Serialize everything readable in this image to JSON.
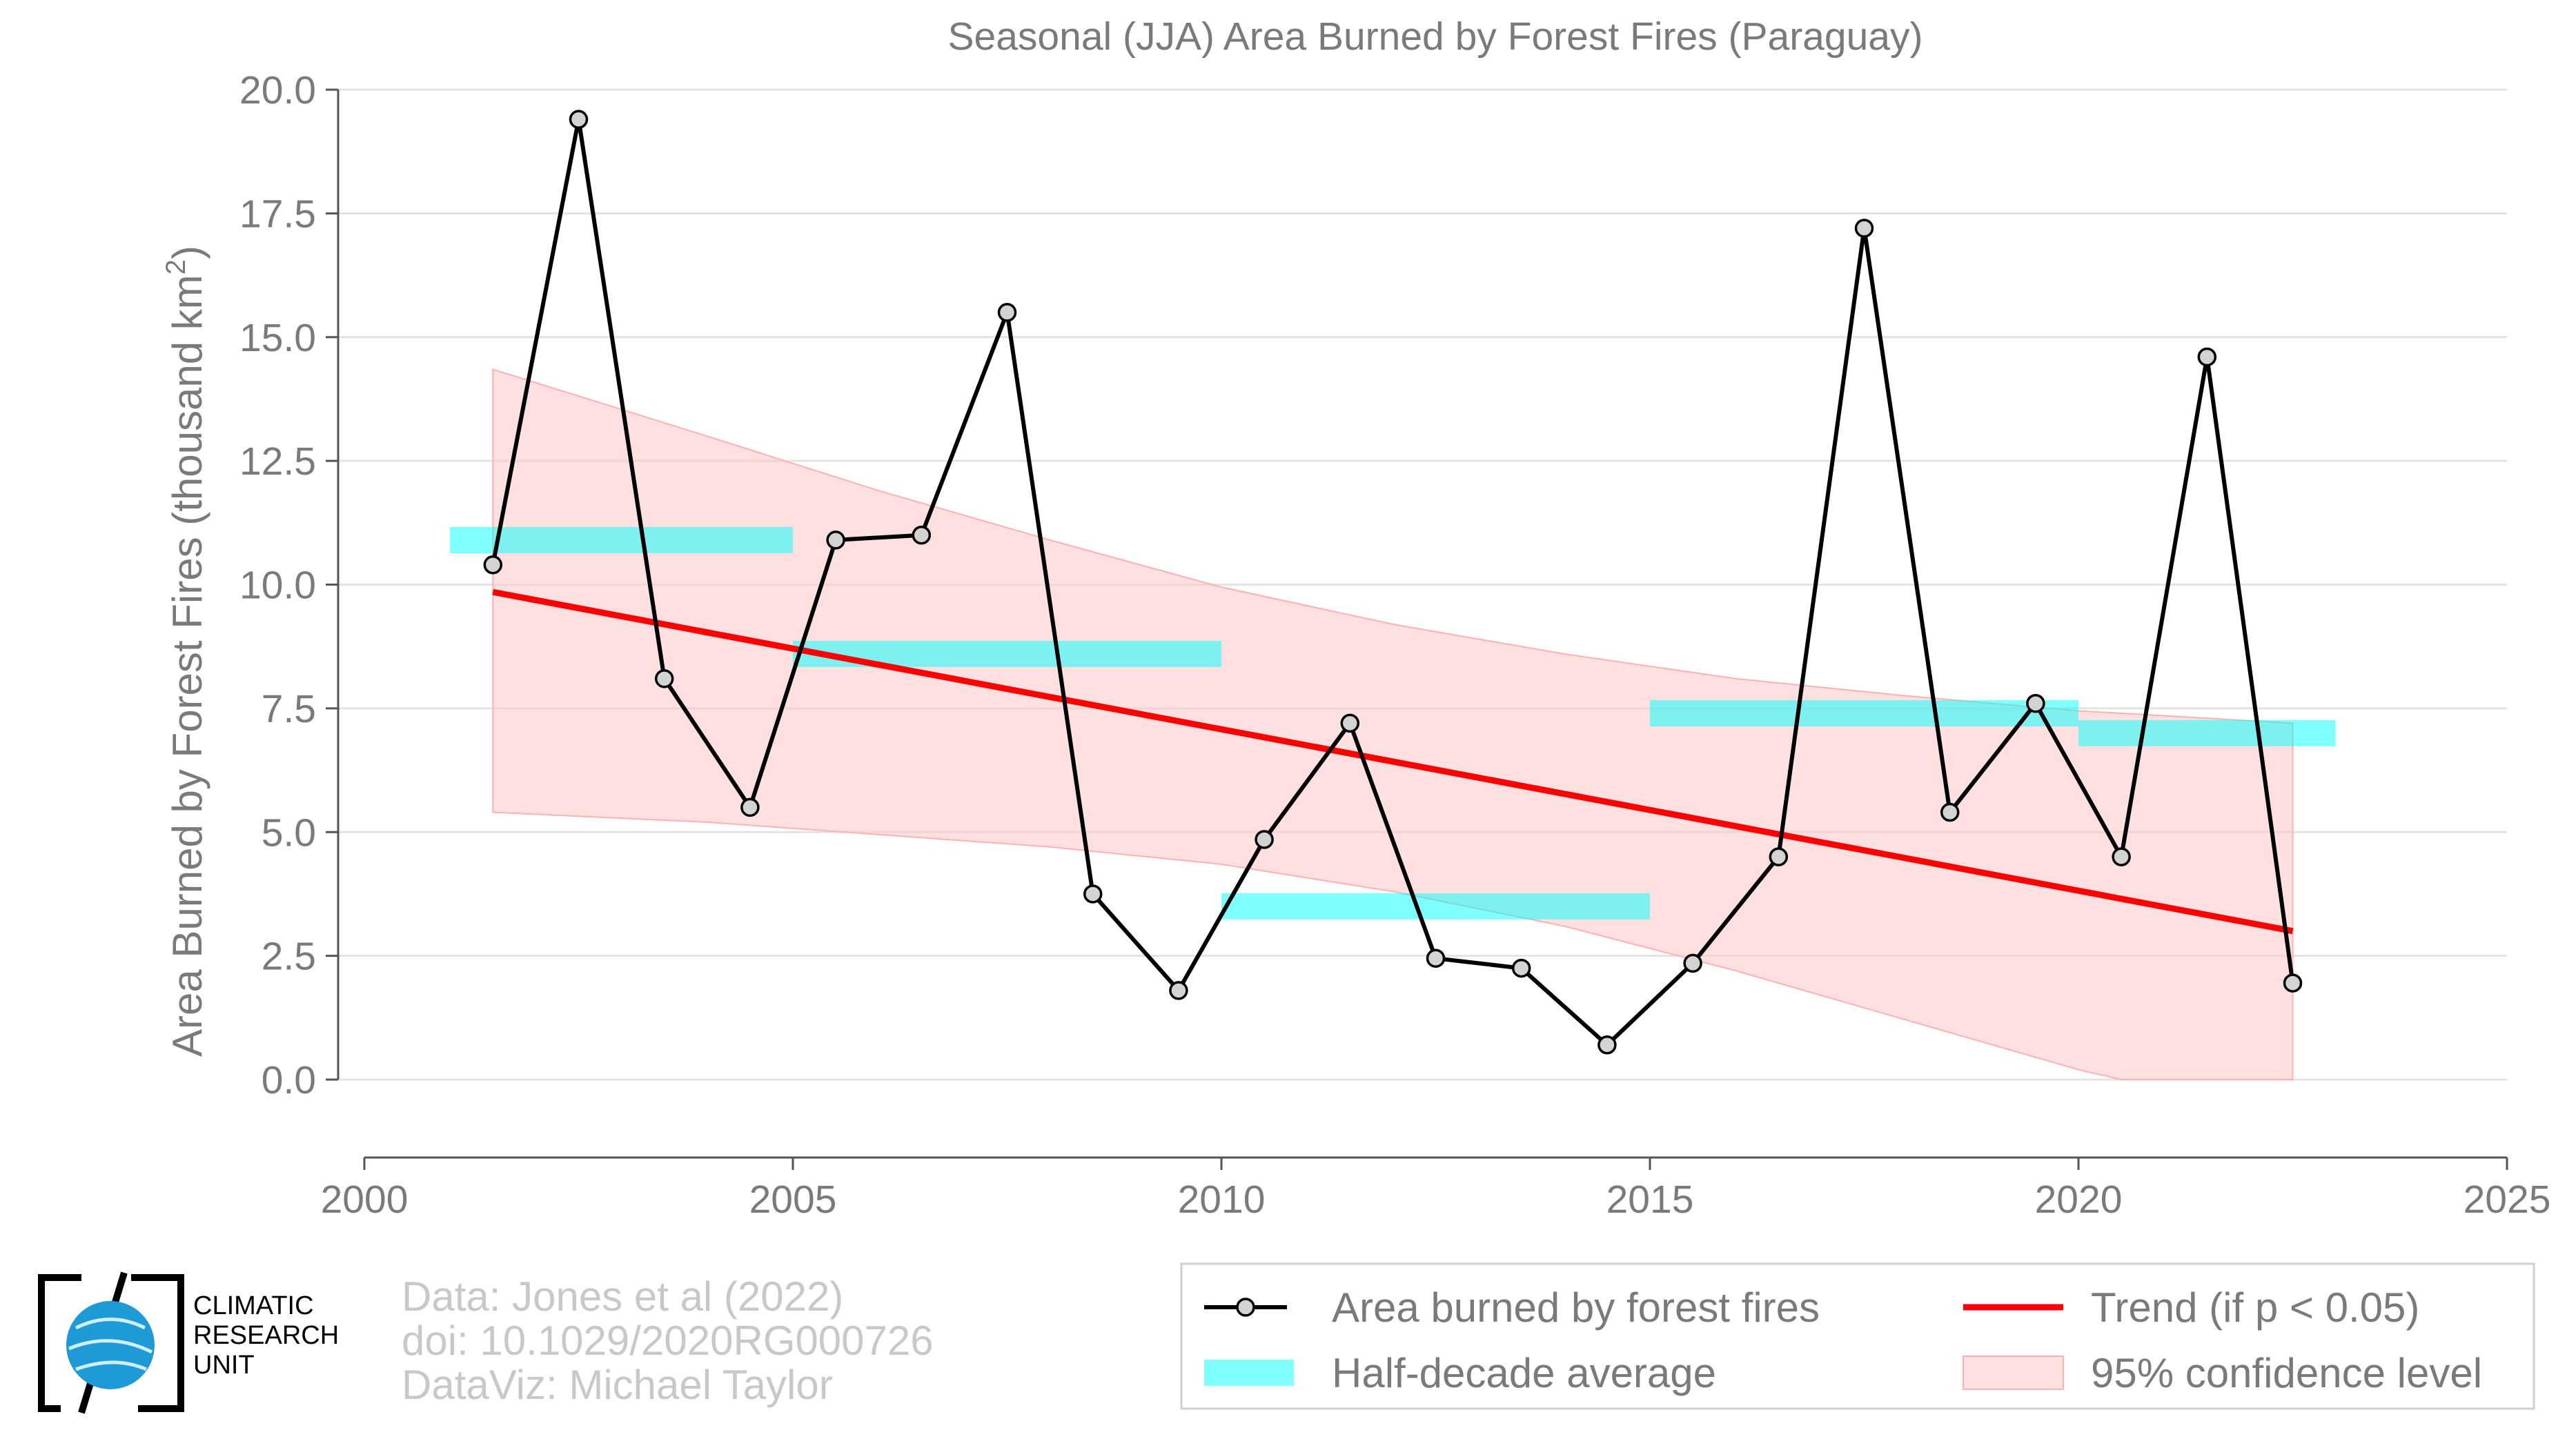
{
  "chart_data": {
    "type": "line",
    "title": "Seasonal (JJA) Area Burned by Forest Fires (Paraguay)",
    "ylabel": "Area Burned by Forest Fires (thousand km²)",
    "xlabel": "",
    "xlim": [
      2000,
      2025
    ],
    "ylim": [
      -1.9,
      20.0
    ],
    "xticks": [
      2000,
      2005,
      2010,
      2015,
      2020,
      2025
    ],
    "yticks": [
      0.0,
      2.5,
      5.0,
      7.5,
      10.0,
      12.5,
      15.0,
      17.5,
      20.0
    ],
    "grid": "horizontal",
    "series": [
      {
        "name": "Area burned by forest fires",
        "color": "#000000",
        "marker_fill": "#d3d3d3",
        "x": [
          2001.5,
          2002.5,
          2003.5,
          2004.5,
          2005.5,
          2006.5,
          2007.5,
          2008.5,
          2009.5,
          2010.5,
          2011.5,
          2012.5,
          2013.5,
          2014.5,
          2015.5,
          2016.5,
          2017.5,
          2018.5,
          2019.5,
          2020.5,
          2021.5,
          2022.5
        ],
        "y": [
          10.4,
          19.4,
          8.1,
          5.5,
          10.9,
          11.0,
          15.5,
          3.75,
          1.8,
          4.85,
          7.2,
          2.45,
          2.25,
          0.7,
          2.35,
          4.5,
          17.2,
          5.4,
          7.6,
          4.5,
          14.6,
          1.95
        ]
      }
    ],
    "half_decade_average": {
      "name": "Half-decade average",
      "color": "#00ffff",
      "segments": [
        {
          "x0": 2001.0,
          "x1": 2005.0,
          "value": 10.9
        },
        {
          "x0": 2005.0,
          "x1": 2010.0,
          "value": 8.6
        },
        {
          "x0": 2010.0,
          "x1": 2015.0,
          "value": 3.5
        },
        {
          "x0": 2015.0,
          "x1": 2020.0,
          "value": 7.4
        },
        {
          "x0": 2020.0,
          "x1": 2023.0,
          "value": 7.0
        }
      ]
    },
    "trend": {
      "name": "Trend (if p < 0.05)",
      "color": "#ff0000",
      "x": [
        2001.5,
        2022.5
      ],
      "y": [
        9.85,
        3.0
      ]
    },
    "confidence": {
      "name": "95% confidence level",
      "color": "#ffcccc",
      "x": [
        2001.5,
        2004.0,
        2006.0,
        2008.0,
        2010.0,
        2012.0,
        2014.0,
        2016.0,
        2018.0,
        2020.0,
        2020.5,
        2022.5
      ],
      "upper": [
        14.35,
        13.0,
        11.9,
        10.9,
        9.95,
        9.2,
        8.6,
        8.1,
        7.75,
        7.45,
        7.4,
        7.2
      ],
      "lower": [
        5.4,
        5.2,
        4.95,
        4.7,
        4.35,
        3.8,
        3.1,
        2.2,
        1.2,
        0.2,
        0.0,
        0.0
      ]
    },
    "legend": [
      {
        "label": "Area burned by forest fires",
        "kind": "line-marker"
      },
      {
        "label": "Trend (if p < 0.05)",
        "kind": "line-red"
      },
      {
        "label": "Half-decade average",
        "kind": "bar-cyan"
      },
      {
        "label": "95% confidence level",
        "kind": "patch-pink"
      }
    ],
    "legend_position": "bottom-right"
  },
  "logo": {
    "lines": [
      "CLIMATIC",
      "RESEARCH",
      "UNIT"
    ]
  },
  "credits": {
    "data": "Data: Jones et al (2022)",
    "doi": "doi: 10.1029/2020RG000726",
    "viz": "DataViz: Michael Taylor"
  },
  "colors": {
    "text_gray": "#7a7a7a",
    "grid": "#e3e3e3",
    "credits_gray": "#c8c8c8"
  }
}
